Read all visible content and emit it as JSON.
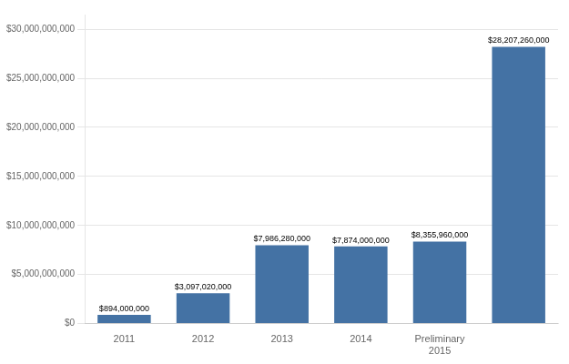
{
  "chart_data": {
    "type": "bar",
    "categories": [
      "2011",
      "2012",
      "2013",
      "2014",
      "Preliminary\n2015",
      null
    ],
    "values": [
      894000000,
      3097020000,
      7986280000,
      7874000000,
      8355960000,
      28207260000
    ],
    "value_labels": [
      "$894,000,000",
      "$3,097,020,000",
      "$7,986,280,000",
      "$7,874,000,000",
      "$8,355,960,000",
      "$28,207,260,000"
    ],
    "data_labels": true,
    "color": "#4472a4",
    "ylim": [
      0,
      31500000000
    ],
    "yticks": [
      {
        "value": 0,
        "label": "$0"
      },
      {
        "value": 5000000000,
        "label": "$5,000,000,000"
      },
      {
        "value": 10000000000,
        "label": "$10,000,000,000"
      },
      {
        "value": 15000000000,
        "label": "$15,000,000,000"
      },
      {
        "value": 20000000000,
        "label": "$20,000,000,000"
      },
      {
        "value": 25000000000,
        "label": "$25,000,000,000"
      },
      {
        "value": 30000000000,
        "label": "$30,000,000,000"
      }
    ],
    "grid": true
  }
}
